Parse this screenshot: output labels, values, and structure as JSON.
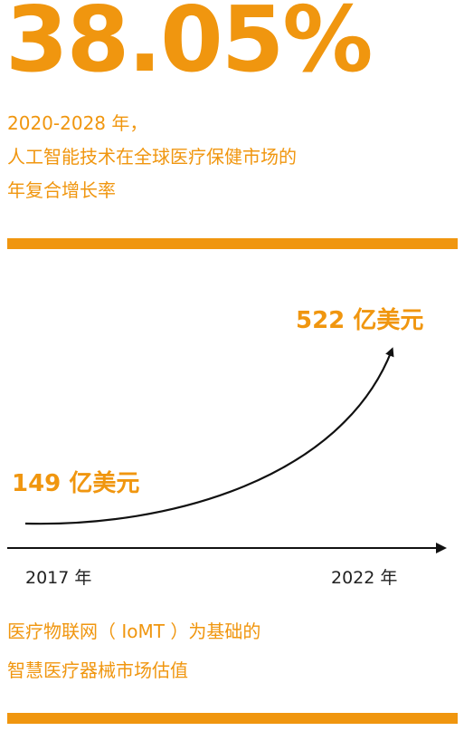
{
  "headline": {
    "stat": "38.05%",
    "lines": [
      "2020-2028 年，",
      "人工智能技术在全球医疗保健市场的",
      "年复合增长率"
    ]
  },
  "footer": {
    "lines": [
      "医疗物联网（ IoMT ）为基础的",
      "智慧医疗器械市场估值"
    ]
  },
  "colors": {
    "accent": "#F0960F",
    "ink": "#222222"
  },
  "chart_data": {
    "type": "line",
    "x": [
      "2017 年",
      "2022 年"
    ],
    "series": [
      {
        "values": [
          149,
          522
        ],
        "labels": [
          "149 亿美元",
          "522 亿美元"
        ]
      }
    ],
    "title": "",
    "xlabel": "",
    "ylabel": ""
  }
}
